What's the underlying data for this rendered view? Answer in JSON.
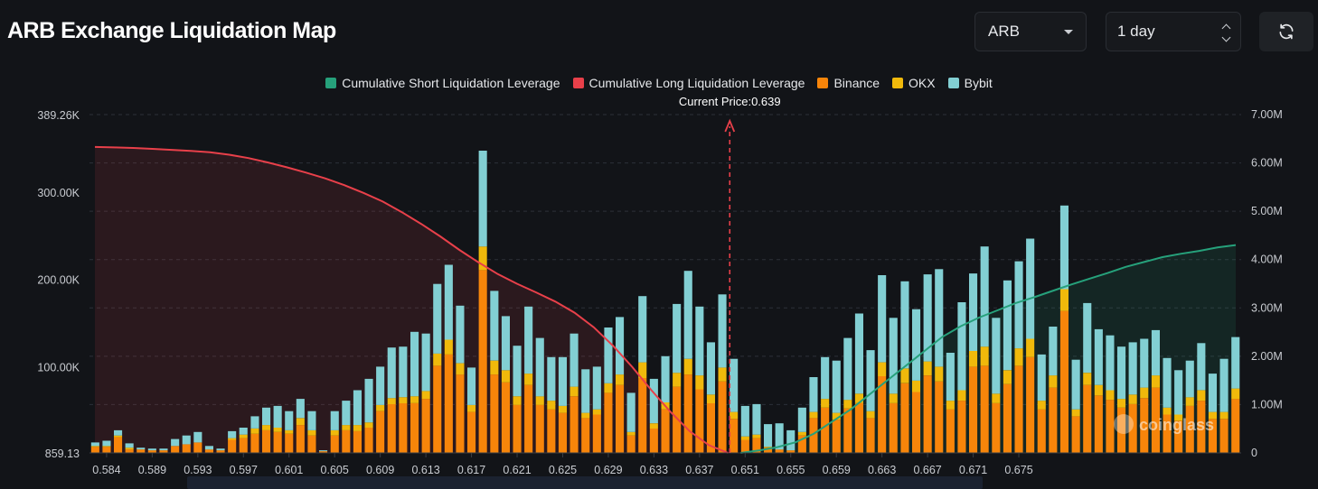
{
  "header": {
    "title": "ARB Exchange Liquidation Map",
    "coin_select": "ARB",
    "time_select": "1 day"
  },
  "colors": {
    "short_cum": "#26a17b",
    "long_cum": "#e8404a",
    "binance": "#f7850a",
    "okx": "#f0b90b",
    "bybit": "#82cfd3",
    "current_price": "#e8404a"
  },
  "icons": {
    "coin_caret": "chevron-down-icon",
    "time_caret": "up-down-icon",
    "refresh": "refresh-icon",
    "watermark": "coinglass-logo"
  },
  "watermark": "coinglass",
  "chart_data": {
    "type": "bar",
    "title": "ARB Exchange Liquidation Map",
    "current_price_label": "Current Price:0.639",
    "x_tick_labels": [
      "0.584",
      "0.589",
      "0.593",
      "0.597",
      "0.601",
      "0.605",
      "0.609",
      "0.613",
      "0.617",
      "0.621",
      "0.625",
      "0.629",
      "0.633",
      "0.637",
      "0.651",
      "0.655",
      "0.659",
      "0.663",
      "0.667",
      "0.671",
      "0.675"
    ],
    "x_tick_bar_index": [
      1,
      5,
      9,
      13,
      17,
      21,
      25,
      29,
      33,
      37,
      41,
      45,
      49,
      53,
      57,
      61,
      65,
      69,
      73,
      77,
      81
    ],
    "y_left_ticks": [
      "859.13",
      "100.00K",
      "200.00K",
      "300.00K",
      "389.26K"
    ],
    "y_left_range": [
      859.13,
      389260
    ],
    "y_right_ticks": [
      "0",
      "1.00M",
      "2.00M",
      "3.00M",
      "4.00M",
      "5.00M",
      "6.00M",
      "7.00M"
    ],
    "y_right_range": [
      0,
      7000000
    ],
    "current_price_bar_index": 56,
    "series": [
      {
        "name": "Binance",
        "values": [
          7000,
          7000,
          18000,
          4000,
          4000,
          3000,
          3000,
          8000,
          10000,
          12000,
          4000,
          3000,
          15000,
          17000,
          22000,
          26000,
          24000,
          22000,
          32000,
          20000,
          2000,
          20000,
          26000,
          25000,
          29000,
          48000,
          56000,
          57000,
          57000,
          62000,
          100000,
          113000,
          90000,
          47000,
          210000,
          90000,
          81000,
          55000,
          78000,
          55000,
          50000,
          46000,
          65000,
          40000,
          44000,
          69000,
          78000,
          20000,
          86000,
          28000,
          50000,
          76000,
          90000,
          73000,
          57000,
          82000,
          39000,
          15000,
          17000,
          6000,
          4000,
          3000,
          20000,
          40000,
          52000,
          38000,
          51000,
          57000,
          40000,
          88000,
          57000,
          80000,
          70000,
          89000,
          82000,
          50000,
          60000,
          99000,
          100000,
          57000,
          79000,
          100000,
          110000,
          50000,
          75000,
          163000,
          42000,
          78000,
          66000,
          61000,
          52000,
          56000,
          63000,
          75000,
          44000,
          37000,
          54000,
          60000,
          39000,
          39000,
          62000
        ]
      },
      {
        "name": "OKX",
        "values": [
          1000,
          1000,
          2000,
          2000,
          0,
          0,
          0,
          0,
          0,
          0,
          0,
          0,
          2000,
          4000,
          6000,
          6000,
          5000,
          4000,
          8000,
          6000,
          0,
          6000,
          6000,
          7000,
          6000,
          7000,
          7000,
          7000,
          8000,
          9000,
          14000,
          17000,
          13000,
          8000,
          27000,
          16000,
          14000,
          10000,
          13000,
          10000,
          10000,
          8000,
          11000,
          6000,
          6000,
          11000,
          12000,
          4000,
          18000,
          6000,
          8000,
          16000,
          18000,
          16000,
          10000,
          16000,
          8000,
          4000,
          4000,
          1000,
          0,
          0,
          4000,
          7000,
          10000,
          8000,
          10000,
          11000,
          8000,
          16000,
          11000,
          17000,
          13000,
          16000,
          17000,
          10000,
          12000,
          18000,
          22000,
          11000,
          16000,
          20000,
          21000,
          10000,
          14000,
          25000,
          8000,
          14000,
          12000,
          11000,
          10000,
          11000,
          12000,
          14000,
          8000,
          7000,
          10000,
          12000,
          8000,
          8000,
          12000
        ]
      },
      {
        "name": "Bybit",
        "values": [
          4000,
          6000,
          6000,
          5000,
          2000,
          2000,
          2000,
          8000,
          10000,
          12000,
          4000,
          2000,
          8000,
          8000,
          14000,
          20000,
          25000,
          22000,
          22000,
          22000,
          1000,
          22000,
          28000,
          40000,
          50000,
          44000,
          58000,
          58000,
          74000,
          66000,
          80000,
          86000,
          66000,
          43000,
          110000,
          80000,
          62000,
          58000,
          77000,
          67000,
          50000,
          56000,
          61000,
          50000,
          49000,
          64000,
          66000,
          45000,
          76000,
          51000,
          53000,
          79000,
          101000,
          79000,
          60000,
          84000,
          61000,
          35000,
          35000,
          26000,
          30000,
          23000,
          28000,
          40000,
          48000,
          60000,
          71000,
          92000,
          70000,
          100000,
          87000,
          100000,
          82000,
          100000,
          112000,
          55000,
          101000,
          89000,
          115000,
          87000,
          103000,
          100000,
          115000,
          53000,
          56000,
          96000,
          57000,
          80000,
          64000,
          63000,
          60000,
          60000,
          56000,
          52000,
          57000,
          51000,
          42000,
          54000,
          44000,
          61000,
          59000
        ]
      },
      {
        "name": "Cumulative Long Liquidation Leverage",
        "values": [
          6.33,
          6.32,
          6.31,
          6.29,
          6.27,
          6.25,
          6.22,
          6.17,
          6.1,
          6.01,
          5.91,
          5.8,
          5.68,
          5.54,
          5.38,
          5.2,
          4.98,
          4.74,
          4.48,
          4.2,
          3.94,
          3.7,
          3.5,
          3.32,
          3.13,
          2.9,
          2.6,
          2.22,
          1.78,
          1.3,
          0.85,
          0.45,
          0.16,
          0.0
        ]
      },
      {
        "name": "Cumulative Short Liquidation Leverage",
        "values": [
          0.0,
          0.05,
          0.12,
          0.22,
          0.4,
          0.65,
          0.9,
          1.2,
          1.5,
          1.8,
          2.1,
          2.4,
          2.62,
          2.8,
          2.95,
          3.1,
          3.22,
          3.35,
          3.48,
          3.6,
          3.72,
          3.85,
          3.95,
          4.05,
          4.12,
          4.18,
          4.25,
          4.3
        ]
      }
    ],
    "grid": "horizontal-dashed",
    "legend_position": "top-center"
  },
  "legend": [
    {
      "label": "Cumulative Short Liquidation Leverage",
      "color": "#26a17b"
    },
    {
      "label": "Cumulative Long Liquidation Leverage",
      "color": "#e8404a"
    },
    {
      "label": "Binance",
      "color": "#f7850a"
    },
    {
      "label": "OKX",
      "color": "#f0b90b"
    },
    {
      "label": "Bybit",
      "color": "#82cfd3"
    }
  ]
}
